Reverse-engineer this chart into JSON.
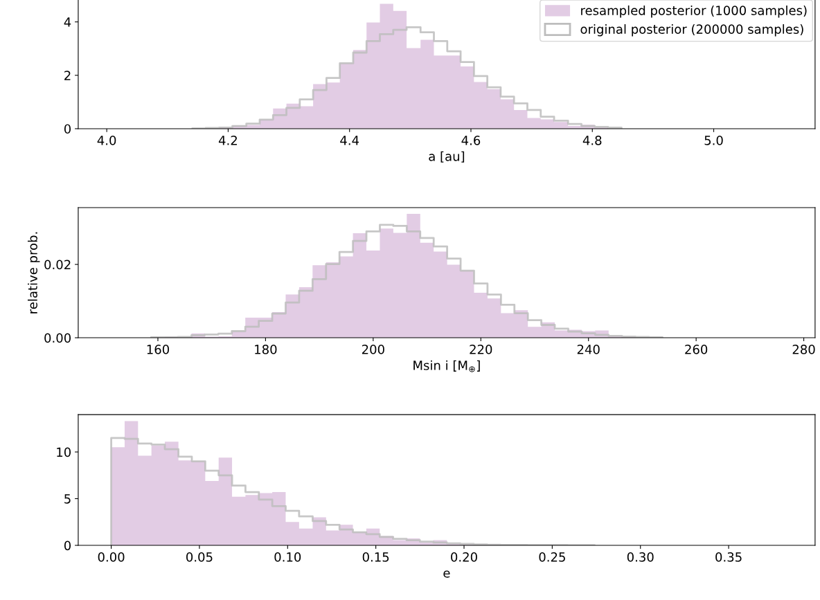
{
  "chart_data": [
    {
      "type": "histogram",
      "xlabel": "a [au]",
      "legend": "top right",
      "bins": [
        4.141,
        4.163,
        4.185,
        4.207,
        4.23,
        4.252,
        4.274,
        4.296,
        4.318,
        4.34,
        4.362,
        4.384,
        4.406,
        4.428,
        4.45,
        4.472,
        4.494,
        4.517,
        4.539,
        4.561,
        4.583,
        4.605,
        4.627,
        4.649,
        4.671,
        4.693,
        4.715,
        4.737,
        4.76,
        4.782,
        4.804,
        4.826,
        4.848
      ],
      "series": [
        {
          "name": "resampled posterior (1000 samples)",
          "color": "#e2cce4",
          "values": [
            0,
            0,
            0.06,
            0.12,
            0.14,
            0.34,
            0.76,
            0.94,
            0.84,
            1.67,
            1.73,
            2.45,
            2.95,
            3.98,
            4.68,
            4.41,
            3.02,
            3.33,
            2.74,
            2.74,
            2.33,
            1.75,
            1.48,
            1.1,
            0.7,
            0.4,
            0.35,
            0.25,
            0.1,
            0.15,
            0.05,
            0
          ]
        },
        {
          "name": "original posterior (200000 samples)",
          "type": "step",
          "color": "#bdbdbd",
          "x": [
            4.141,
            4.141,
            4.163,
            4.185,
            4.207,
            4.23,
            4.252,
            4.274,
            4.296,
            4.318,
            4.34,
            4.362,
            4.384,
            4.406,
            4.428,
            4.45,
            4.472,
            4.494,
            4.517,
            4.539,
            4.561,
            4.583,
            4.605,
            4.627,
            4.649,
            4.671,
            4.693,
            4.715,
            4.737,
            4.76,
            4.782,
            4.804,
            4.826,
            4.848
          ],
          "values": [
            0,
            0.01,
            0.03,
            0.04,
            0.1,
            0.19,
            0.34,
            0.51,
            0.78,
            1.1,
            1.45,
            1.9,
            2.45,
            2.85,
            3.28,
            3.54,
            3.7,
            3.8,
            3.61,
            3.28,
            2.9,
            2.5,
            1.97,
            1.55,
            1.2,
            0.95,
            0.7,
            0.45,
            0.3,
            0.18,
            0.1,
            0.07,
            0.04,
            0
          ]
        }
      ],
      "xlim": [
        3.953,
        5.167
      ],
      "ylim": [
        0,
        4.91
      ],
      "xticks": [
        {
          "value": 4.0,
          "label": "4.0"
        },
        {
          "value": 4.2,
          "label": "4.2"
        },
        {
          "value": 4.4,
          "label": "4.4"
        },
        {
          "value": 4.6,
          "label": "4.6"
        },
        {
          "value": 4.8,
          "label": "4.8"
        },
        {
          "value": 5.0,
          "label": "5.0"
        }
      ],
      "yticks": [
        0,
        2,
        4
      ]
    },
    {
      "type": "histogram",
      "xlabel": "Msin i [M$_{⊕}$]",
      "ylabel": "relative prob.",
      "bins": [
        158.74,
        161.24,
        163.74,
        166.24,
        168.74,
        171.24,
        173.74,
        176.24,
        178.74,
        181.24,
        183.74,
        186.24,
        188.74,
        191.24,
        193.74,
        196.24,
        198.74,
        201.24,
        203.74,
        206.24,
        208.74,
        211.24,
        213.74,
        216.24,
        218.74,
        221.24,
        223.74,
        226.24,
        228.74,
        231.24,
        233.74,
        236.24,
        238.74,
        241.24,
        243.74,
        246.24,
        248.74,
        251.24,
        253.74
      ],
      "series": [
        {
          "color": "#e2cce4",
          "values": [
            0,
            0.0003,
            0,
            0.0012,
            0.0003,
            0.0004,
            0.0017,
            0.0055,
            0.0055,
            0.007,
            0.0118,
            0.0138,
            0.0198,
            0.0206,
            0.0222,
            0.0285,
            0.0238,
            0.0298,
            0.0286,
            0.0338,
            0.0259,
            0.0235,
            0.0199,
            0.0183,
            0.0123,
            0.0107,
            0.0067,
            0.0075,
            0.003,
            0.0042,
            0.002,
            0.0022,
            0.0018,
            0.002,
            0.0005,
            0.0003,
            0,
            0
          ]
        },
        {
          "type": "step",
          "color": "#bdbdbd",
          "x": [
            158.74,
            158.74,
            161.24,
            163.74,
            166.24,
            168.74,
            171.24,
            173.74,
            176.24,
            178.74,
            181.24,
            183.74,
            186.24,
            188.74,
            191.24,
            193.74,
            196.24,
            198.74,
            201.24,
            203.74,
            206.24,
            208.74,
            211.24,
            213.74,
            216.24,
            218.74,
            221.24,
            223.74,
            226.24,
            228.74,
            231.24,
            233.74,
            236.24,
            238.74,
            241.24,
            243.74,
            246.24,
            248.74,
            251.24,
            253.74
          ],
          "values": [
            0,
            0.0001,
            0.0001,
            0.0002,
            0.0007,
            0.0009,
            0.0011,
            0.0018,
            0.003,
            0.0046,
            0.0066,
            0.0096,
            0.0128,
            0.016,
            0.0201,
            0.0234,
            0.0264,
            0.029,
            0.0308,
            0.0305,
            0.029,
            0.0272,
            0.0249,
            0.0216,
            0.0183,
            0.0148,
            0.0118,
            0.009,
            0.0067,
            0.0048,
            0.0035,
            0.0025,
            0.0017,
            0.0012,
            0.0008,
            0.0005,
            0.0003,
            0.0002,
            0.0001,
            0
          ]
        }
      ],
      "xlim": [
        145.2,
        282.1
      ],
      "ylim": [
        0,
        0.0355
      ],
      "xticks": [
        160,
        180,
        200,
        220,
        240,
        260,
        280
      ],
      "yticks": [
        {
          "value": 0,
          "label": "0.00"
        },
        {
          "value": 0.02,
          "label": "0.02"
        }
      ]
    },
    {
      "type": "histogram",
      "xlabel": "e",
      "bins": [
        0,
        0.0076,
        0.0152,
        0.0228,
        0.0304,
        0.0381,
        0.0457,
        0.0533,
        0.0609,
        0.0685,
        0.0761,
        0.0837,
        0.0913,
        0.0989,
        0.1065,
        0.1142,
        0.1218,
        0.1294,
        0.137,
        0.1446,
        0.1522,
        0.1598,
        0.1674,
        0.175,
        0.1826,
        0.1903,
        0.1979,
        0.2055,
        0.2131,
        0.2207,
        0.2283,
        0.2359,
        0.2435,
        0.2511,
        0.2587,
        0.2664,
        0.274
      ],
      "series": [
        {
          "color": "#e2cce4",
          "values": [
            10.5,
            13.3,
            9.6,
            10.7,
            11.1,
            9.1,
            9.0,
            6.9,
            9.4,
            5.2,
            5.4,
            5.6,
            5.7,
            2.5,
            1.8,
            3.0,
            1.6,
            2.2,
            1.4,
            1.8,
            1.0,
            0.55,
            0.75,
            0.3,
            0.55,
            0.15,
            0.1,
            0.1,
            0.05,
            0,
            0,
            0,
            0,
            0,
            0,
            0
          ]
        },
        {
          "type": "step",
          "color": "#bdbdbd",
          "x": [
            0,
            0,
            0.0076,
            0.0152,
            0.0228,
            0.0304,
            0.0381,
            0.0457,
            0.0533,
            0.0609,
            0.0685,
            0.0761,
            0.0837,
            0.0913,
            0.0989,
            0.1065,
            0.1142,
            0.1218,
            0.1294,
            0.137,
            0.1446,
            0.1522,
            0.1598,
            0.1674,
            0.175,
            0.1826,
            0.1903,
            0.1979,
            0.2055,
            0.2131,
            0.2207,
            0.2283,
            0.2359,
            0.2435,
            0.2511,
            0.2587,
            0.2664,
            0.274
          ],
          "values": [
            0,
            11.5,
            11.4,
            10.9,
            10.8,
            10.3,
            9.5,
            9.0,
            8.0,
            7.5,
            6.4,
            5.7,
            4.9,
            4.2,
            3.7,
            3.1,
            2.6,
            2.2,
            1.7,
            1.4,
            1.2,
            0.9,
            0.7,
            0.55,
            0.4,
            0.3,
            0.22,
            0.15,
            0.1,
            0.07,
            0.05,
            0.04,
            0.03,
            0.02,
            0.02,
            0.01,
            0.01,
            0
          ]
        }
      ],
      "xlim": [
        -0.0187,
        0.399
      ],
      "ylim": [
        0,
        14
      ],
      "xticks": [
        {
          "value": 0,
          "label": "0.00"
        },
        {
          "value": 0.05,
          "label": "0.05"
        },
        {
          "value": 0.1,
          "label": "0.10"
        },
        {
          "value": 0.15,
          "label": "0.15"
        },
        {
          "value": 0.2,
          "label": "0.20"
        },
        {
          "value": 0.25,
          "label": "0.25"
        },
        {
          "value": 0.3,
          "label": "0.30"
        },
        {
          "value": 0.35,
          "label": "0.35"
        }
      ],
      "yticks": [
        0,
        5,
        10
      ]
    }
  ]
}
